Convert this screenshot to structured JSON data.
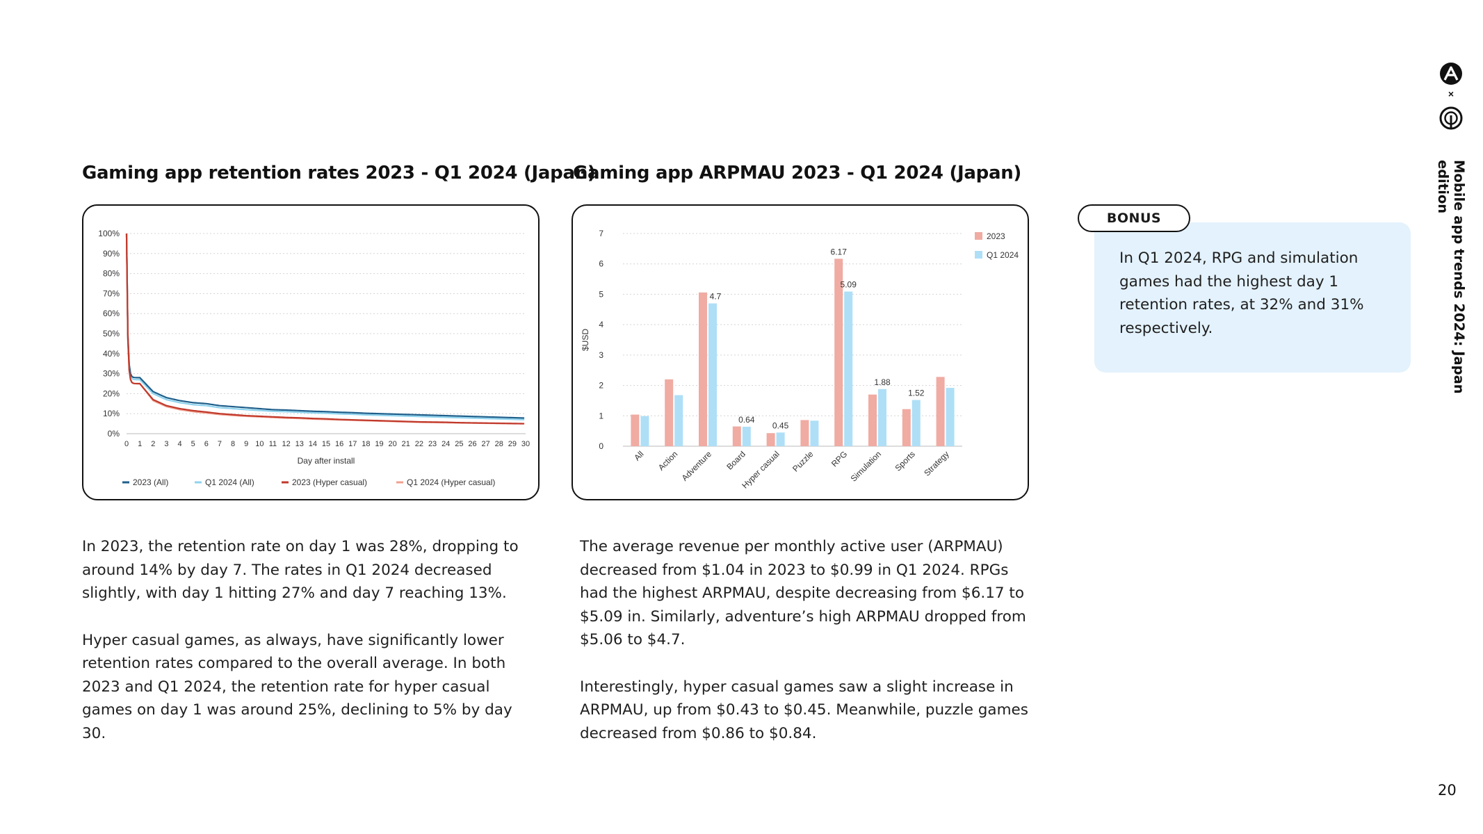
{
  "page": {
    "side_label": "Mobile app trends 2024: Japan edition",
    "page_number": "20",
    "logo_separator": "×"
  },
  "colors": {
    "c2023_all": "#1f5f8b",
    "q1_all": "#8fd3ee",
    "c2023_hyper": "#c0392b",
    "q1_hyper": "#f2a08f",
    "bar_2023": "#f0aba2",
    "bar_q1": "#aedff7",
    "bonus_bg": "#e3f2fc"
  },
  "retention": {
    "title": "Gaming app retention rates 2023 - Q1 2024 (Japan)",
    "paragraphs": [
      "In 2023, the retention rate on day 1 was 28%, dropping to around 14% by day 7. The rates in Q1 2024 decreased slightly, with day 1 hitting 27% and day 7 reaching 13%.",
      "Hyper casual games, as always, have significantly lower retention rates compared to the overall average. In both 2023 and Q1 2024, the retention rate for hyper casual games on day 1 was around 25%, declining to 5% by day 30."
    ]
  },
  "arpmau": {
    "title": "Gaming app ARPMAU 2023 - Q1 2024 (Japan)",
    "paragraphs": [
      "The average revenue per monthly active user (ARPMAU) decreased from $1.04 in 2023 to $0.99 in Q1 2024. RPGs had the highest ARPMAU, despite decreasing from $6.17 to $5.09 in. Similarly, adventure’s high ARPMAU dropped from $5.06 to $4.7.",
      "Interestingly, hyper casual games saw a slight increase in ARPMAU, up from $0.43 to $0.45. Meanwhile, puzzle games decreased from $0.86 to $0.84."
    ]
  },
  "bonus": {
    "label": "BONUS",
    "text": "In Q1 2024, RPG and simulation games had the highest day 1 retention rates, at 32% and 31% respectively."
  },
  "chart_data": [
    {
      "type": "line",
      "title": "Gaming app retention rates 2023 - Q1 2024 (Japan)",
      "xlabel": "Day after install",
      "ylabel": "",
      "x": [
        0,
        1,
        2,
        3,
        4,
        5,
        6,
        7,
        8,
        9,
        10,
        11,
        12,
        13,
        14,
        15,
        16,
        17,
        18,
        19,
        20,
        21,
        22,
        23,
        24,
        25,
        26,
        27,
        28,
        29,
        30
      ],
      "xticks": [
        "0",
        "1",
        "2",
        "3",
        "4",
        "5",
        "6",
        "7",
        "8",
        "9",
        "10",
        "11",
        "12",
        "13",
        "14",
        "15",
        "16",
        "17",
        "18",
        "19",
        "20",
        "21",
        "22",
        "23",
        "24",
        "25",
        "26",
        "27",
        "28",
        "29",
        "30"
      ],
      "yticks": [
        "0%",
        "10%",
        "20%",
        "30%",
        "40%",
        "50%",
        "60%",
        "70%",
        "80%",
        "90%",
        "100%"
      ],
      "ylim": [
        0,
        100
      ],
      "grid": true,
      "legend_position": "bottom",
      "series": [
        {
          "name": "2023 (All)",
          "color_key": "c2023_all",
          "values": [
            100,
            28,
            21,
            18,
            16.5,
            15.5,
            15,
            14,
            13.5,
            13,
            12.5,
            12,
            11.8,
            11.5,
            11.2,
            11,
            10.7,
            10.5,
            10.2,
            10,
            9.8,
            9.6,
            9.4,
            9.2,
            9,
            8.8,
            8.6,
            8.4,
            8.2,
            8,
            7.8
          ]
        },
        {
          "name": "Q1 2024 (All)",
          "color_key": "q1_all",
          "values": [
            100,
            27,
            20,
            17,
            15.5,
            14.5,
            14,
            13,
            12.5,
            12,
            11.6,
            11.2,
            11,
            10.7,
            10.4,
            10.2,
            9.9,
            9.7,
            9.4,
            9.2,
            9,
            8.8,
            8.6,
            8.4,
            8.2,
            8,
            7.8,
            7.6,
            7.4,
            7.2,
            7
          ]
        },
        {
          "name": "2023 (Hyper casual)",
          "color_key": "c2023_hyper",
          "values": [
            100,
            25,
            17,
            14,
            12.5,
            11.5,
            10.8,
            10,
            9.5,
            9,
            8.7,
            8.4,
            8.1,
            7.9,
            7.6,
            7.4,
            7.1,
            6.9,
            6.7,
            6.5,
            6.3,
            6.1,
            5.9,
            5.8,
            5.7,
            5.5,
            5.4,
            5.3,
            5.2,
            5.1,
            5
          ]
        },
        {
          "name": "Q1 2024 (Hyper casual)",
          "color_key": "q1_hyper",
          "values": [
            100,
            25,
            16.5,
            13.5,
            12,
            11,
            10.3,
            9.6,
            9.1,
            8.7,
            8.4,
            8.1,
            7.8,
            7.6,
            7.3,
            7.1,
            6.9,
            6.7,
            6.5,
            6.3,
            6.1,
            5.9,
            5.7,
            5.6,
            5.5,
            5.4,
            5.3,
            5.2,
            5.1,
            5,
            5
          ]
        }
      ]
    },
    {
      "type": "bar",
      "title": "Gaming app ARPMAU 2023 - Q1 2024 (Japan)",
      "xlabel": "",
      "ylabel": "$USD",
      "ylim": [
        0,
        7
      ],
      "yticks": [
        "0",
        "1",
        "2",
        "3",
        "4",
        "5",
        "6",
        "7"
      ],
      "grid": true,
      "legend_position": "top-right",
      "categories": [
        "All",
        "Action",
        "Adventure",
        "Board",
        "Hyper casual",
        "Puzzle",
        "RPG",
        "Simulation",
        "Sports",
        "Strategy"
      ],
      "series": [
        {
          "name": "2023",
          "color_key": "bar_2023",
          "values": [
            1.04,
            2.2,
            5.06,
            0.65,
            0.43,
            0.86,
            6.17,
            1.7,
            1.22,
            2.28
          ],
          "labels": [
            "",
            "",
            "",
            "",
            "",
            "",
            "6.17",
            "",
            "",
            ""
          ]
        },
        {
          "name": "Q1 2024",
          "color_key": "bar_q1",
          "values": [
            0.99,
            1.68,
            4.7,
            0.64,
            0.45,
            0.84,
            5.09,
            1.88,
            1.52,
            1.92
          ],
          "labels": [
            "",
            "",
            "4.7",
            "0.64",
            "0.45",
            "",
            "5.09",
            "1.88",
            "1.52",
            ""
          ]
        }
      ]
    }
  ]
}
